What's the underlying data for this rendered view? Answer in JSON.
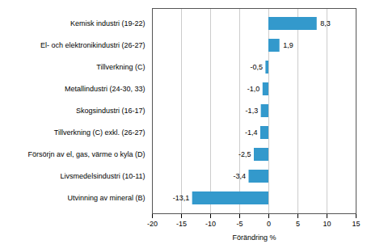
{
  "chart_data": {
    "type": "bar",
    "orientation": "horizontal",
    "categories": [
      "Utvinning av mineral (B)",
      "Livsmedelsindustri (10-11)",
      "Försörjn av el, gas, värme o kyla (D)",
      "Tillverkning (C) exkl. (26-27)",
      "Skogsindustri (16-17)",
      "Metallindustri (24-30, 33)",
      "Tillverkning (C)",
      "El- och elektronikindustri (26-27)",
      "Kemisk industri (19-22)"
    ],
    "values": [
      -13.1,
      -3.4,
      -2.5,
      -1.4,
      -1.3,
      -1.0,
      -0.5,
      1.9,
      8.3
    ],
    "value_labels": [
      "-13,1",
      "-3,4",
      "-2,5",
      "-1,4",
      "-1,3",
      "-1,0",
      "-0,5",
      "1,9",
      "8,3"
    ],
    "data_labels": true,
    "color": "#3399CC",
    "xlabel": "Förändring %",
    "xlim": [
      -20,
      15
    ],
    "xticks": [
      -20,
      -15,
      -10,
      -5,
      0,
      5,
      10,
      15
    ],
    "grid": true
  }
}
